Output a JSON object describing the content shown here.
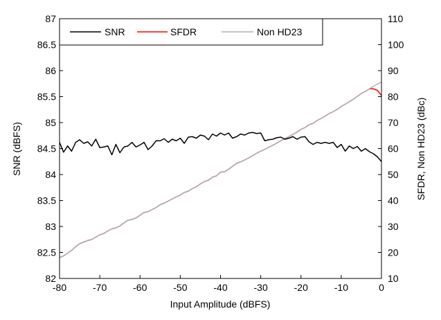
{
  "chart_data": {
    "type": "line",
    "xlabel": "Input Amplitude (dBFS)",
    "ylabel_left": "SNR (dBFS)",
    "ylabel_right": "SFDR, Non HD23 (dBc)",
    "xlim": [
      -80,
      0
    ],
    "ylim_left": [
      82,
      87
    ],
    "ylim_right": [
      10,
      110
    ],
    "x_ticks": [
      -80,
      -70,
      -60,
      -50,
      -40,
      -30,
      -20,
      -10,
      0
    ],
    "y_left_ticks": [
      82,
      82.5,
      83,
      83.5,
      84,
      84.5,
      85,
      85.5,
      86,
      86.5,
      87
    ],
    "y_right_ticks": [
      10,
      20,
      30,
      40,
      50,
      60,
      70,
      80,
      90,
      100,
      110
    ],
    "grid": false,
    "legend_position": "top-left",
    "series": [
      {
        "name": "SNR",
        "axis": "left",
        "color": "#000000",
        "x": [
          -80,
          -79,
          -78,
          -77,
          -76,
          -75,
          -74,
          -73,
          -72,
          -71,
          -70,
          -69,
          -68,
          -67,
          -66,
          -65,
          -64,
          -63,
          -62,
          -61,
          -60,
          -59,
          -58,
          -57,
          -56,
          -55,
          -54,
          -53,
          -52,
          -51,
          -50,
          -49,
          -48,
          -47,
          -46,
          -45,
          -44,
          -43,
          -42,
          -41,
          -40,
          -39,
          -38,
          -37,
          -36,
          -35,
          -34,
          -33,
          -32,
          -31,
          -30,
          -29,
          -28,
          -27,
          -26,
          -25,
          -24,
          -23,
          -22,
          -21,
          -20,
          -19,
          -18,
          -17,
          -16,
          -15,
          -14,
          -13,
          -12,
          -11,
          -10,
          -9,
          -8,
          -7,
          -6,
          -5,
          -4,
          -3,
          -2,
          -1,
          0
        ],
        "values": [
          84.62,
          84.43,
          84.55,
          84.45,
          84.62,
          84.67,
          84.6,
          84.63,
          84.55,
          84.68,
          84.52,
          84.53,
          84.55,
          84.38,
          84.58,
          84.42,
          84.53,
          84.55,
          84.62,
          84.53,
          84.57,
          84.62,
          84.48,
          84.55,
          84.65,
          84.65,
          84.69,
          84.62,
          84.68,
          84.65,
          84.7,
          84.6,
          84.72,
          84.73,
          84.7,
          84.76,
          84.74,
          84.67,
          84.78,
          84.74,
          84.8,
          84.76,
          84.8,
          84.7,
          84.73,
          84.78,
          84.76,
          84.8,
          84.81,
          84.79,
          84.8,
          84.65,
          84.67,
          84.68,
          84.71,
          84.72,
          84.68,
          84.7,
          84.73,
          84.68,
          84.72,
          84.73,
          84.63,
          84.58,
          84.62,
          84.6,
          84.62,
          84.6,
          84.62,
          84.52,
          84.58,
          84.45,
          84.55,
          84.5,
          84.54,
          84.45,
          84.5,
          84.44,
          84.4,
          84.34,
          84.25
        ]
      },
      {
        "name": "SFDR",
        "axis": "right",
        "color": "#ff0000",
        "x": [
          -80,
          -79,
          -78,
          -77,
          -76,
          -75,
          -74,
          -73,
          -72,
          -71,
          -70,
          -69,
          -68,
          -67,
          -66,
          -65,
          -64,
          -63,
          -62,
          -61,
          -60,
          -59,
          -58,
          -57,
          -56,
          -55,
          -54,
          -53,
          -52,
          -51,
          -50,
          -49,
          -48,
          -47,
          -46,
          -45,
          -44,
          -43,
          -42,
          -41,
          -40,
          -39,
          -38,
          -37,
          -36,
          -35,
          -34,
          -33,
          -32,
          -31,
          -30,
          -29,
          -28,
          -27,
          -26,
          -25,
          -24,
          -23,
          -22,
          -21,
          -20,
          -19,
          -18,
          -17,
          -16,
          -15,
          -14,
          -13,
          -12,
          -11,
          -10,
          -9,
          -8,
          -7,
          -6,
          -5,
          -4,
          -3,
          -2,
          -1,
          0
        ],
        "values": [
          18.0,
          18.7,
          19.7,
          20.8,
          22.2,
          23.4,
          24.0,
          24.6,
          25.0,
          25.9,
          26.8,
          27.3,
          28.3,
          29.1,
          29.5,
          30.2,
          31.4,
          32.4,
          32.7,
          33.3,
          34.3,
          35.4,
          35.7,
          36.5,
          37.3,
          38.4,
          39.0,
          39.8,
          40.6,
          41.4,
          42.1,
          43.1,
          43.6,
          44.6,
          45.3,
          46.4,
          47.3,
          47.8,
          49.0,
          49.5,
          50.9,
          51.1,
          52.0,
          53.2,
          54.3,
          54.9,
          55.6,
          56.4,
          57.3,
          58.2,
          59.0,
          59.7,
          60.5,
          61.3,
          62.1,
          63.0,
          63.9,
          64.6,
          65.5,
          66.3,
          67.4,
          68.1,
          69.2,
          69.7,
          70.8,
          71.6,
          72.5,
          73.5,
          74.2,
          75.1,
          76.2,
          77.1,
          78.0,
          79.0,
          80.1,
          81.2,
          82.0,
          83.0,
          83.0,
          82.4,
          80.4
        ]
      },
      {
        "name": "Non HD23",
        "axis": "right",
        "color": "#b0b0b0",
        "x": [
          -80,
          -79,
          -78,
          -77,
          -76,
          -75,
          -74,
          -73,
          -72,
          -71,
          -70,
          -69,
          -68,
          -67,
          -66,
          -65,
          -64,
          -63,
          -62,
          -61,
          -60,
          -59,
          -58,
          -57,
          -56,
          -55,
          -54,
          -53,
          -52,
          -51,
          -50,
          -49,
          -48,
          -47,
          -46,
          -45,
          -44,
          -43,
          -42,
          -41,
          -40,
          -39,
          -38,
          -37,
          -36,
          -35,
          -34,
          -33,
          -32,
          -31,
          -30,
          -29,
          -28,
          -27,
          -26,
          -25,
          -24,
          -23,
          -22,
          -21,
          -20,
          -19,
          -18,
          -17,
          -16,
          -15,
          -14,
          -13,
          -12,
          -11,
          -10,
          -9,
          -8,
          -7,
          -6,
          -5,
          -4,
          -3,
          -2,
          -1,
          0
        ],
        "values": [
          18.0,
          18.7,
          19.7,
          20.8,
          22.2,
          23.4,
          24.0,
          24.6,
          25.0,
          25.9,
          26.8,
          27.3,
          28.3,
          29.1,
          29.5,
          30.2,
          31.4,
          32.4,
          32.7,
          33.3,
          34.3,
          35.4,
          35.7,
          36.5,
          37.3,
          38.4,
          39.0,
          39.8,
          40.6,
          41.4,
          42.1,
          43.1,
          43.6,
          44.6,
          45.3,
          46.4,
          47.3,
          47.8,
          49.0,
          49.5,
          50.9,
          51.1,
          52.0,
          53.2,
          54.3,
          54.9,
          55.6,
          56.4,
          57.3,
          58.2,
          59.0,
          59.7,
          60.5,
          61.3,
          62.1,
          63.0,
          63.9,
          64.6,
          65.5,
          66.3,
          67.4,
          68.1,
          69.2,
          69.7,
          70.8,
          71.6,
          72.5,
          73.5,
          74.2,
          75.1,
          76.2,
          77.1,
          78.0,
          79.0,
          80.1,
          81.2,
          82.0,
          83.0,
          84.0,
          84.8,
          85.6
        ]
      }
    ]
  }
}
